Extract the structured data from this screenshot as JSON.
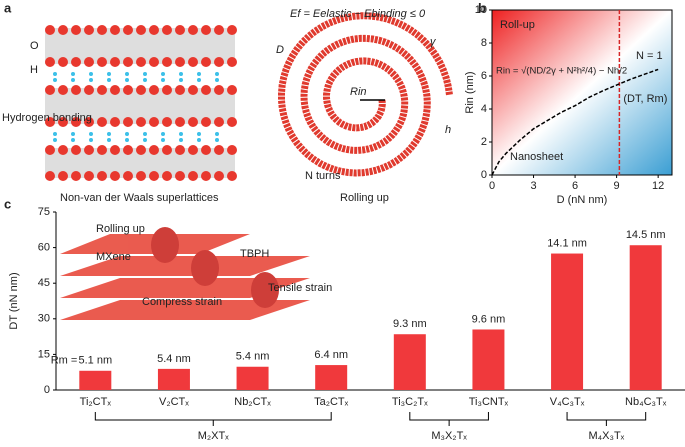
{
  "panel_labels": [
    "a",
    "b",
    "c"
  ],
  "illustration": {
    "o_label": "O",
    "h_label": "H",
    "bonding": "Hydrogen bonding",
    "superlattice": "Non-van der Waals superlattices",
    "energy": "Ef = Eelastic − Ebinding ≤ 0",
    "d_label": "D",
    "gamma": "γ",
    "r_label": "Rin",
    "h_thick": "h",
    "turns": "N turns",
    "rolling": "Rolling up"
  },
  "inset": {
    "rolling": "Rolling up",
    "mxene": "MXene",
    "tbph": "TBPH",
    "tensile": "Tensile strain",
    "compress": "Compress strain"
  },
  "chart_data": [
    {
      "type": "line",
      "xlabel": "D (nN nm)",
      "ylabel": "Rin (nm)",
      "xlim": [
        0,
        13
      ],
      "ylim": [
        0,
        10
      ],
      "xticks": [
        0,
        3,
        6,
        9,
        12
      ],
      "yticks": [
        0,
        2,
        4,
        6,
        8,
        10
      ],
      "x": [
        0,
        0.5,
        1,
        2,
        3,
        4,
        5,
        6,
        7,
        8,
        9,
        10,
        11,
        12
      ],
      "series": [
        {
          "name": "N = 1",
          "color": "#000000",
          "values": [
            0,
            0.8,
            1.3,
            2.1,
            2.8,
            3.3,
            3.8,
            4.2,
            4.7,
            5.1,
            5.45,
            5.8,
            6.1,
            6.4
          ]
        }
      ],
      "vline": 9.2,
      "vline_color": "#d62728",
      "annotations": {
        "top": "Roll-up",
        "bottom": "Nanosheet",
        "formula": "Rin = √(ND/2γ + N²h²/4) − Nh/2",
        "point": "(DT, Rm)"
      }
    },
    {
      "type": "bar",
      "ylabel": "DT (nN nm)",
      "ylim": [
        0,
        75
      ],
      "yticks": [
        0,
        15,
        30,
        45,
        60,
        75
      ],
      "color": "#f0393c",
      "categories": [
        "Ti₂CTₓ",
        "V₂CTₓ",
        "Nb₂CTₓ",
        "Ta₂CTₓ",
        "Ti₃C₂Tₓ",
        "Ti₃CNTₓ",
        "V₄C₃Tₓ",
        "Nb₄C₃Tₓ"
      ],
      "values": [
        8.1,
        8.9,
        9.8,
        10.5,
        23.5,
        25.5,
        57.5,
        61
      ],
      "bar_annotations": [
        "5.1 nm",
        "5.4 nm",
        "5.4 nm",
        "6.4 nm",
        "9.3 nm",
        "9.6 nm",
        "14.1 nm",
        "14.5 nm"
      ],
      "annotation_prefix": "Rm =",
      "groups": [
        {
          "label": "M₂XTₓ",
          "span": [
            0,
            3
          ]
        },
        {
          "label": "M₃X₂Tₓ",
          "span": [
            4,
            5
          ]
        },
        {
          "label": "M₄X₃Tₓ",
          "span": [
            6,
            7
          ]
        }
      ]
    }
  ]
}
